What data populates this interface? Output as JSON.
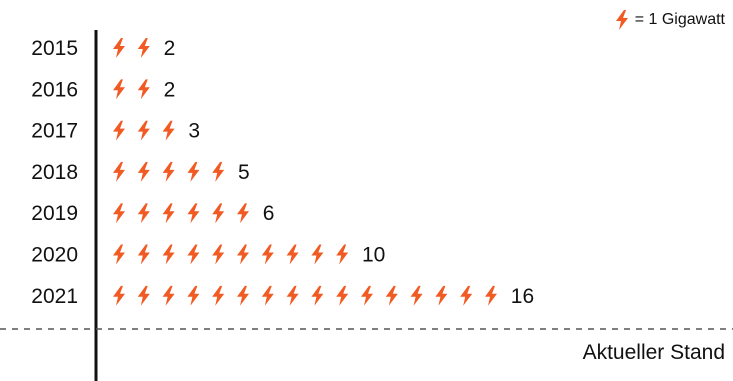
{
  "legend": {
    "icon": "lightning-bolt-icon",
    "text": "= 1 Gigawatt"
  },
  "status_label": "Aktueller Stand",
  "colors": {
    "icon": "#F15A22",
    "text": "#111111",
    "axis": "#111111",
    "divider": "#555555"
  },
  "chart_data": {
    "type": "pictograph",
    "unit_per_icon": 1,
    "categories": [
      "2015",
      "2016",
      "2017",
      "2018",
      "2019",
      "2020",
      "2021"
    ],
    "values": [
      2,
      2,
      3,
      5,
      6,
      10,
      16
    ]
  }
}
